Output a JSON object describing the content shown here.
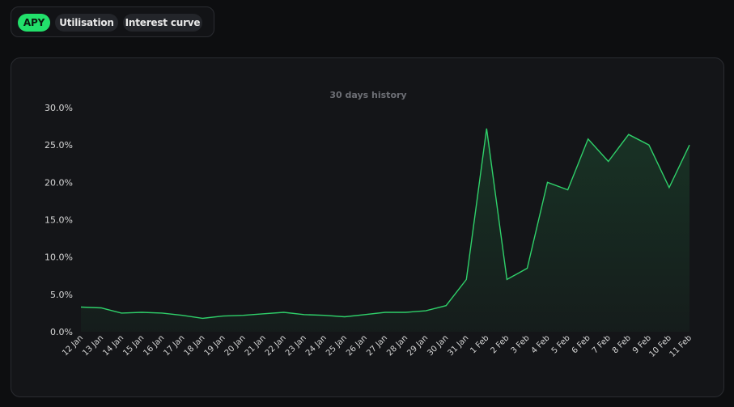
{
  "tabs": [
    {
      "label": "APY",
      "active": true
    },
    {
      "label": "Utilisation",
      "active": false
    },
    {
      "label": "Interest curve",
      "active": false
    }
  ],
  "colors": {
    "accent": "#22e06b",
    "line": "#2fd06a",
    "background": "#0d0e10",
    "card": "#141518"
  },
  "chart_data": {
    "type": "area",
    "title": "30 days history",
    "xlabel": "",
    "ylabel": "",
    "ylim": [
      0,
      30
    ],
    "yticks": [
      "0.0%",
      "5.0%",
      "10.0%",
      "15.0%",
      "20.0%",
      "25.0%",
      "30.0%"
    ],
    "grid": false,
    "categories": [
      "12 Jan",
      "13 Jan",
      "14 Jan",
      "15 Jan",
      "16 Jan",
      "17 Jan",
      "18 Jan",
      "19 Jan",
      "20 Jan",
      "21 Jan",
      "22 Jan",
      "23 Jan",
      "24 Jan",
      "25 Jan",
      "26 Jan",
      "27 Jan",
      "28 Jan",
      "29 Jan",
      "30 Jan",
      "31 Jan",
      "1 Feb",
      "2 Feb",
      "3 Feb",
      "4 Feb",
      "5 Feb",
      "6 Feb",
      "7 Feb",
      "8 Feb",
      "9 Feb",
      "10 Feb",
      "11 Feb"
    ],
    "series": [
      {
        "name": "APY",
        "values": [
          3.3,
          3.2,
          2.5,
          2.6,
          2.5,
          2.2,
          1.8,
          2.1,
          2.2,
          2.4,
          2.6,
          2.3,
          2.2,
          2.0,
          2.3,
          2.6,
          2.6,
          2.8,
          3.5,
          7.0,
          27.2,
          7.0,
          8.5,
          20.0,
          19.0,
          25.8,
          22.8,
          26.4,
          25.0,
          19.3,
          25.0
        ]
      }
    ]
  }
}
